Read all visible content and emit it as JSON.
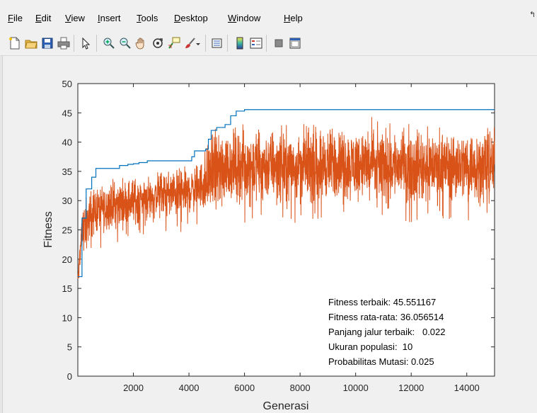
{
  "menu": {
    "file": "File",
    "edit": "Edit",
    "view": "View",
    "insert": "Insert",
    "tools": "Tools",
    "desktop": "Desktop",
    "window": "Window",
    "help": "Help"
  },
  "toolbar_icons": [
    "new-figure-icon",
    "open-file-icon",
    "save-icon",
    "print-icon",
    "pointer-icon",
    "zoom-in-icon",
    "zoom-out-icon",
    "pan-icon",
    "rotate-3d-icon",
    "data-cursor-icon",
    "brush-icon",
    "link-plot-icon",
    "colorbar-icon",
    "legend-icon",
    "hide-plot-tools-icon",
    "show-plot-tools-icon"
  ],
  "chart_data": {
    "type": "line",
    "xlabel": "Generasi",
    "ylabel": "Fitness",
    "xlim": [
      0,
      15000
    ],
    "ylim": [
      0,
      50
    ],
    "xticks": [
      2000,
      4000,
      6000,
      8000,
      10000,
      12000,
      14000
    ],
    "yticks": [
      0,
      5,
      10,
      15,
      20,
      25,
      30,
      35,
      40,
      45,
      50
    ],
    "colors": {
      "best": "#0072bd",
      "mean": "#d95319"
    },
    "series": [
      {
        "key": "best",
        "x": [
          0,
          150,
          300,
          500,
          650,
          1000,
          1500,
          1800,
          2000,
          2200,
          2500,
          3000,
          3500,
          4000,
          4100,
          4200,
          4300,
          4600,
          4700,
          4800,
          5000,
          5300,
          5500,
          5700,
          6000,
          8000,
          10000,
          12000,
          14000,
          15000
        ],
        "y": [
          17,
          27,
          32,
          34,
          35.5,
          35.5,
          36,
          36.2,
          36.3,
          36.5,
          36.8,
          36.8,
          36.8,
          36.8,
          37.5,
          38.5,
          38.5,
          38.8,
          40.5,
          42,
          42.5,
          43,
          44.5,
          45.3,
          45.55,
          45.55,
          45.55,
          45.55,
          45.55,
          45.55
        ]
      },
      {
        "key": "mean",
        "x": [
          0,
          150,
          500,
          1000,
          2000,
          3000,
          4000,
          4500,
          4800,
          5500,
          6000,
          8000,
          10000,
          12000,
          14000,
          15000
        ],
        "y": [
          17,
          25,
          28,
          29,
          30,
          31,
          31.5,
          33,
          35,
          36,
          36,
          36.2,
          36.3,
          36.1,
          36,
          36.06
        ]
      }
    ],
    "annotation": [
      "Fitness terbaik: 45.551167",
      "Fitness rata-rata: 36.056514",
      "Panjang jalur terbaik:   0.022",
      "Ukuran populasi:  10",
      "Probabilitas Mutasi: 0.025"
    ]
  }
}
